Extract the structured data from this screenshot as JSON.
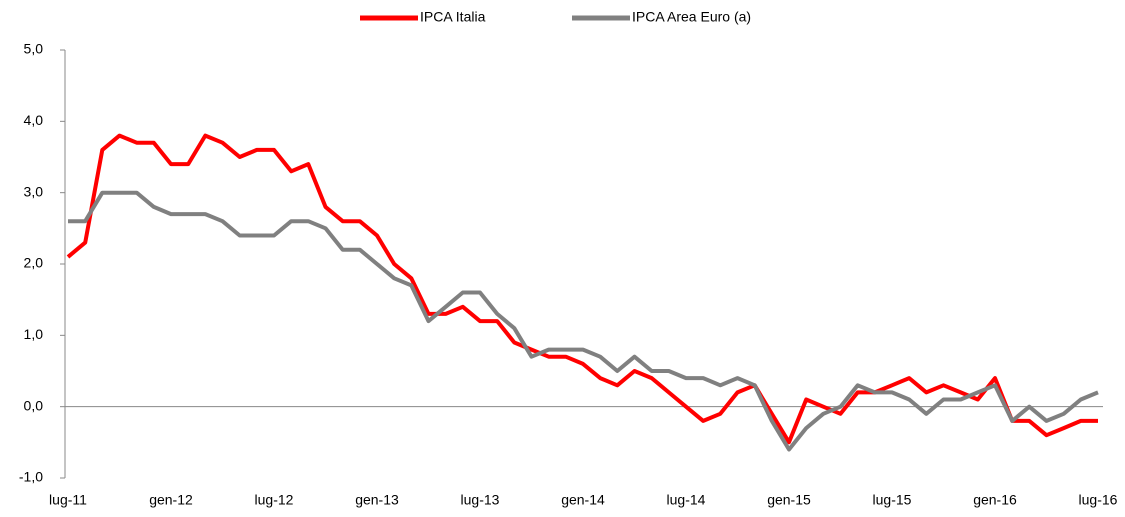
{
  "chart_data": {
    "type": "line",
    "categories": [
      "lug-11",
      null,
      null,
      null,
      null,
      null,
      "gen-12",
      null,
      null,
      null,
      null,
      null,
      "lug-12",
      null,
      null,
      null,
      null,
      null,
      "gen-13",
      null,
      null,
      null,
      null,
      null,
      "lug-13",
      null,
      null,
      null,
      null,
      null,
      "gen-14",
      null,
      null,
      null,
      null,
      null,
      "lug-14",
      null,
      null,
      null,
      null,
      null,
      "gen-15",
      null,
      null,
      null,
      null,
      null,
      "lug-15",
      null,
      null,
      null,
      null,
      null,
      "gen-16",
      null,
      null,
      null,
      null,
      null,
      "lug-16"
    ],
    "series": [
      {
        "name": "IPCA Italia",
        "color": "#ff0000",
        "values": [
          2.1,
          2.3,
          3.6,
          3.8,
          3.7,
          3.7,
          3.4,
          3.4,
          3.8,
          3.7,
          3.5,
          3.6,
          3.6,
          3.3,
          3.4,
          2.8,
          2.6,
          2.6,
          2.4,
          2.0,
          1.8,
          1.3,
          1.3,
          1.4,
          1.2,
          1.2,
          0.9,
          0.8,
          0.7,
          0.7,
          0.6,
          0.4,
          0.3,
          0.5,
          0.4,
          0.2,
          0.0,
          -0.2,
          -0.1,
          0.2,
          0.3,
          -0.1,
          -0.5,
          0.1,
          0.0,
          -0.1,
          0.2,
          0.2,
          0.3,
          0.4,
          0.2,
          0.3,
          0.2,
          0.1,
          0.4,
          -0.2,
          -0.2,
          -0.4,
          -0.3,
          -0.2,
          -0.2
        ]
      },
      {
        "name": "IPCA Area Euro (a)",
        "color": "#808080",
        "values": [
          2.6,
          2.6,
          3.0,
          3.0,
          3.0,
          2.8,
          2.7,
          2.7,
          2.7,
          2.6,
          2.4,
          2.4,
          2.4,
          2.6,
          2.6,
          2.5,
          2.2,
          2.2,
          2.0,
          1.8,
          1.7,
          1.2,
          1.4,
          1.6,
          1.6,
          1.3,
          1.1,
          0.7,
          0.8,
          0.8,
          0.8,
          0.7,
          0.5,
          0.7,
          0.5,
          0.5,
          0.4,
          0.4,
          0.3,
          0.4,
          0.3,
          -0.2,
          -0.6,
          -0.3,
          -0.1,
          0.0,
          0.3,
          0.2,
          0.2,
          0.1,
          -0.1,
          0.1,
          0.1,
          0.2,
          0.3,
          -0.2,
          0.0,
          -0.2,
          -0.1,
          0.1,
          0.2
        ]
      }
    ],
    "ylim": [
      -1,
      5
    ],
    "yticks": [
      {
        "value": -1,
        "label": "-1,0"
      },
      {
        "value": 0,
        "label": "0,0"
      },
      {
        "value": 1,
        "label": "1,0"
      },
      {
        "value": 2,
        "label": "2,0"
      },
      {
        "value": 3,
        "label": "3,0"
      },
      {
        "value": 4,
        "label": "4,0"
      },
      {
        "value": 5,
        "label": "5,0"
      }
    ],
    "grid": false,
    "legend": "top"
  }
}
